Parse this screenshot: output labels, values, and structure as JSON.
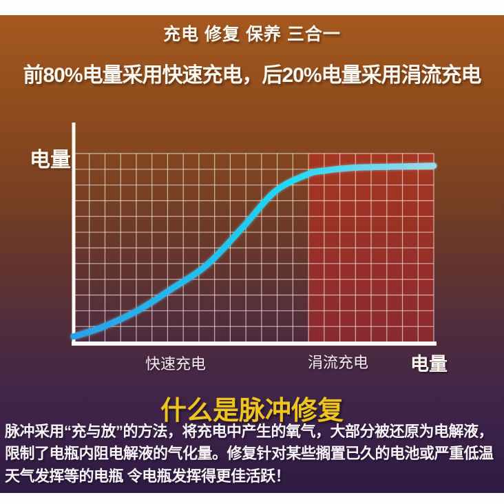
{
  "header": {
    "title": "充电 修复 保养 三合一",
    "subtitle": "前80%电量采用快速充电，后20%电量采用涓流充电"
  },
  "chart": {
    "y_axis_label": "电量",
    "x_axis_label": "电量",
    "fast_region_label": "快速充电",
    "trickle_region_label": "涓流充电"
  },
  "chart_data": {
    "type": "line",
    "title": "",
    "xlabel": "电量",
    "ylabel": "电量",
    "xlim": [
      0,
      100
    ],
    "ylim": [
      0,
      100
    ],
    "grid": true,
    "legend": "none",
    "series": [
      {
        "name": "charge-curve",
        "x": [
          0,
          8,
          18,
          27,
          37,
          47,
          56,
          65,
          70,
          78,
          88,
          100
        ],
        "y": [
          3,
          8,
          17,
          28,
          41,
          61,
          80,
          89,
          91,
          92.5,
          93,
          93.5
        ]
      }
    ],
    "regions": [
      {
        "label": "快速充电",
        "x_start": 0,
        "x_end": 65,
        "highlighted": false
      },
      {
        "label": "涓流充电",
        "x_start": 65,
        "x_end": 100,
        "highlighted": true
      }
    ]
  },
  "pulse_section": {
    "heading": "什么是脉冲修复",
    "lines": [
      "脉冲采用“充与放”的方法，将充电中产生的氧气，大部分被还原为电解液，",
      "限制了电瓶内阻电解液的气化量。修复针对某些搁置已久的电池或严重低温",
      "天气发挥等的电瓶 令电瓶发挥得更佳活跃！"
    ]
  },
  "colors": {
    "background_top": "#a5591e",
    "background_bottom": "#2e1a42",
    "heading_yellow": "#eec51e",
    "curve_blue": "#2b9fe8",
    "curve_cyan": "#1fd9f6",
    "curve_pale": "#9adaea",
    "trickle_overlay": "#c32a24",
    "grid_line": "#fff8f0",
    "axis_white": "#fdfaf5"
  }
}
